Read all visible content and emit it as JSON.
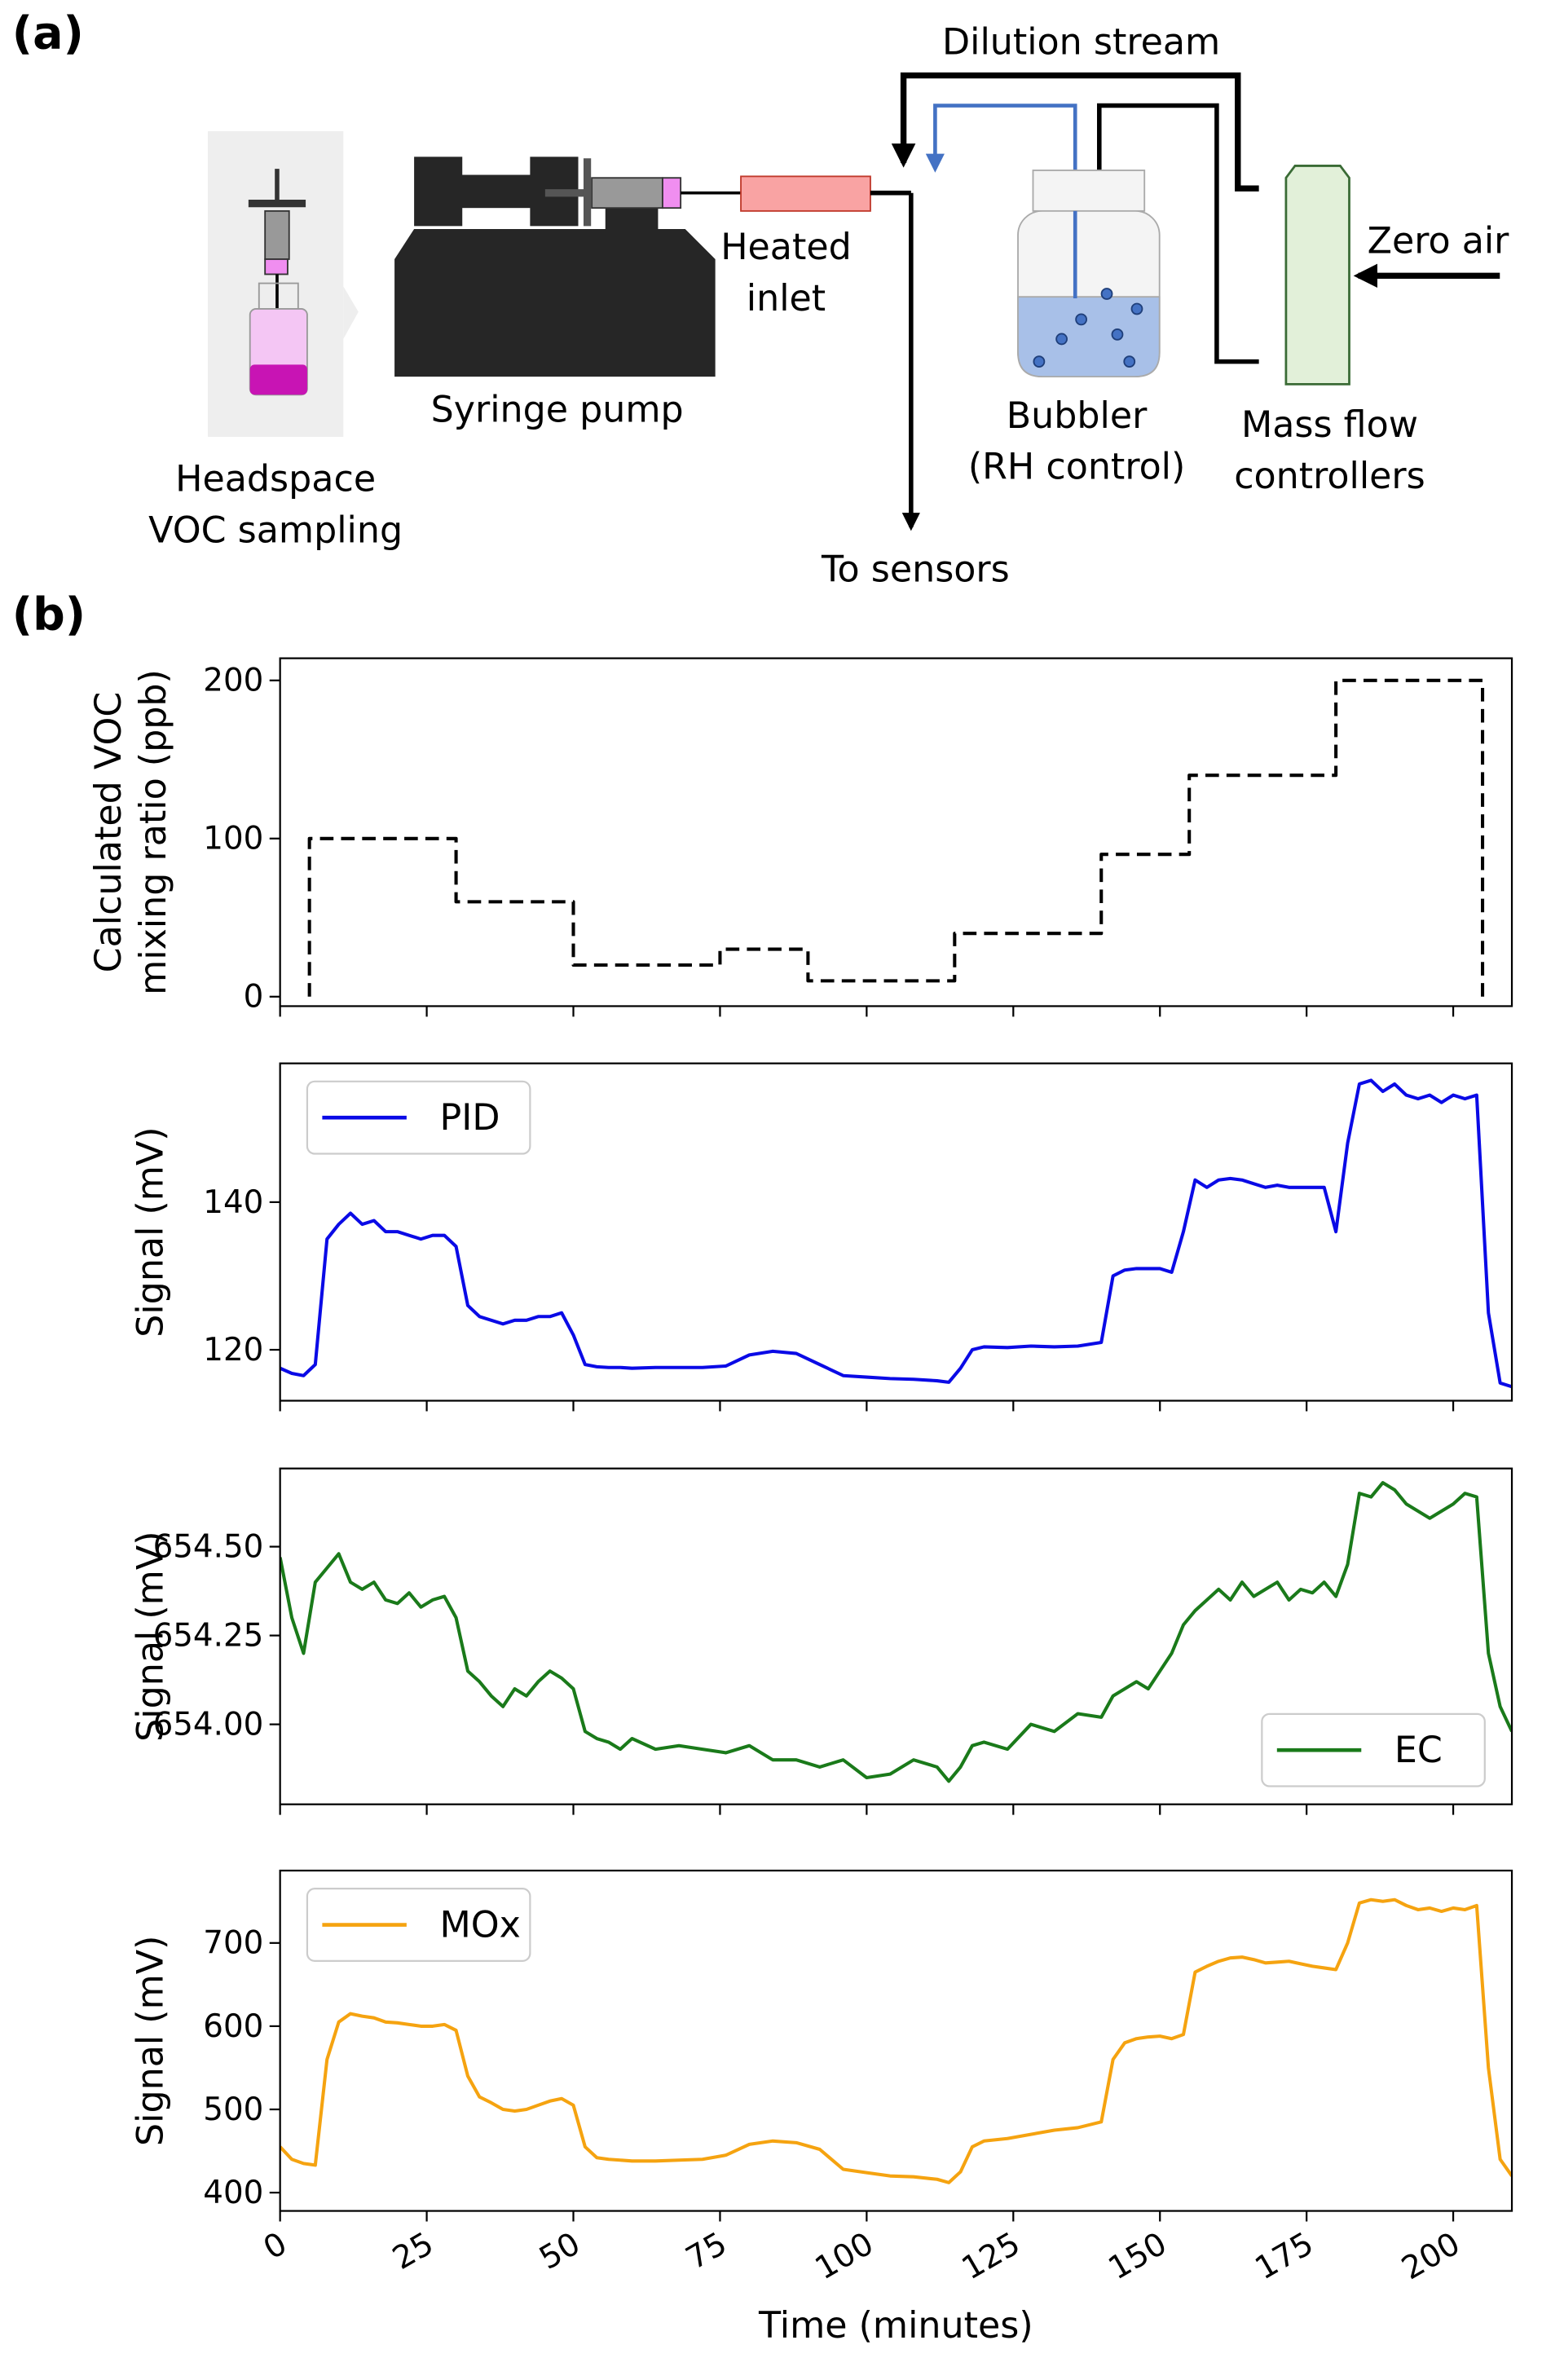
{
  "panel_labels": [
    "(a)",
    "(b)"
  ],
  "diagram": {
    "dilution_stream": "Dilution stream",
    "zero_air": "Zero air",
    "heated_inlet": [
      "Heated",
      "inlet"
    ],
    "syringe_pump": "Syringe pump",
    "headspace": [
      "Headspace",
      "VOC sampling"
    ],
    "bubbler": [
      "Bubbler",
      "(RH control)"
    ],
    "mass_flow": [
      "Mass flow",
      "controllers"
    ],
    "to_sensors": "To sensors"
  },
  "chart_data": [
    {
      "type": "line",
      "ylabel": [
        "Calculated VOC",
        "mixing ratio (ppb)"
      ],
      "x": [
        5,
        5,
        30,
        30,
        50,
        50,
        75,
        75,
        90,
        90,
        115,
        115,
        140,
        140,
        155,
        155,
        180,
        180,
        205,
        205
      ],
      "series": [
        {
          "color": "#000000",
          "linestyle": "dashed",
          "values": [
            0,
            100,
            100,
            60,
            60,
            20,
            20,
            30,
            30,
            10,
            10,
            40,
            40,
            90,
            90,
            140,
            140,
            200,
            200,
            0
          ]
        }
      ],
      "xlim": [
        0,
        210
      ],
      "ylim": [
        -6,
        214
      ],
      "xticks": [
        0,
        25,
        50,
        75,
        100,
        125,
        150,
        175,
        200
      ],
      "yticks": [
        0,
        100,
        200
      ]
    },
    {
      "type": "line",
      "ylabel": "Signal (mV)",
      "x": [
        0,
        2,
        4,
        6,
        8,
        10,
        12,
        14,
        16,
        18,
        20,
        22,
        24,
        26,
        28,
        30,
        32,
        34,
        36,
        38,
        40,
        42,
        44,
        46,
        48,
        50,
        52,
        54,
        56,
        58,
        60,
        64,
        68,
        72,
        76,
        80,
        84,
        88,
        92,
        96,
        100,
        104,
        108,
        112,
        114,
        116,
        118,
        120,
        124,
        128,
        132,
        136,
        140,
        142,
        144,
        146,
        148,
        150,
        152,
        154,
        156,
        158,
        160,
        162,
        164,
        166,
        168,
        170,
        172,
        174,
        176,
        178,
        180,
        182,
        184,
        186,
        188,
        190,
        192,
        194,
        196,
        198,
        200,
        202,
        204,
        206,
        208,
        210
      ],
      "series": [
        {
          "name": "PID",
          "color": "#0a0ae6",
          "values": [
            117.5,
            116.8,
            116.5,
            118,
            135,
            137,
            138.5,
            137,
            137.5,
            136,
            136,
            135.5,
            135,
            135.5,
            135.5,
            134,
            126,
            124.5,
            124,
            123.5,
            124,
            124,
            124.5,
            124.5,
            125,
            122,
            118,
            117.7,
            117.6,
            117.6,
            117.5,
            117.6,
            117.6,
            117.6,
            117.8,
            119.3,
            119.8,
            119.5,
            118,
            116.5,
            116.3,
            116.1,
            116,
            115.8,
            115.6,
            117.5,
            120,
            120.4,
            120.3,
            120.5,
            120.4,
            120.5,
            121,
            130,
            130.8,
            131,
            131,
            131,
            130.5,
            136,
            143,
            142,
            143,
            143.2,
            143,
            142.5,
            142,
            142.3,
            142,
            142,
            142,
            142,
            136,
            148,
            156,
            156.5,
            155,
            156,
            154.5,
            154,
            154.5,
            153.5,
            154.5,
            154,
            154.5,
            125,
            115.5,
            115
          ]
        }
      ],
      "legend": "upper left",
      "xlim": [
        0,
        210
      ],
      "ylim": [
        113.1,
        158.8
      ],
      "xticks": [
        0,
        25,
        50,
        75,
        100,
        125,
        150,
        175,
        200
      ],
      "yticks": [
        120,
        140
      ]
    },
    {
      "type": "line",
      "ylabel": "Signal (mV)",
      "x": [
        0,
        2,
        4,
        6,
        8,
        10,
        12,
        14,
        16,
        18,
        20,
        22,
        24,
        26,
        28,
        30,
        32,
        34,
        36,
        38,
        40,
        42,
        44,
        46,
        48,
        50,
        52,
        54,
        56,
        58,
        60,
        64,
        68,
        72,
        76,
        80,
        84,
        88,
        92,
        96,
        100,
        104,
        108,
        112,
        114,
        116,
        118,
        120,
        124,
        128,
        132,
        136,
        140,
        142,
        144,
        146,
        148,
        150,
        152,
        154,
        156,
        158,
        160,
        162,
        164,
        166,
        168,
        170,
        172,
        174,
        176,
        178,
        180,
        182,
        184,
        186,
        188,
        190,
        192,
        194,
        196,
        198,
        200,
        202,
        204,
        206,
        208,
        210
      ],
      "series": [
        {
          "name": "EC",
          "color": "#1a7a1a",
          "values": [
            654.47,
            654.3,
            654.2,
            654.4,
            654.44,
            654.48,
            654.4,
            654.38,
            654.4,
            654.35,
            654.34,
            654.37,
            654.33,
            654.35,
            654.36,
            654.3,
            654.15,
            654.12,
            654.08,
            654.05,
            654.1,
            654.08,
            654.12,
            654.15,
            654.13,
            654.1,
            653.98,
            653.96,
            653.95,
            653.93,
            653.96,
            653.93,
            653.94,
            653.93,
            653.92,
            653.94,
            653.9,
            653.9,
            653.88,
            653.9,
            653.85,
            653.86,
            653.9,
            653.88,
            653.84,
            653.88,
            653.94,
            653.95,
            653.93,
            654.0,
            653.98,
            654.03,
            654.02,
            654.08,
            654.1,
            654.12,
            654.1,
            654.15,
            654.2,
            654.28,
            654.32,
            654.35,
            654.38,
            654.35,
            654.4,
            654.36,
            654.38,
            654.4,
            654.35,
            654.38,
            654.37,
            654.4,
            654.36,
            654.45,
            654.65,
            654.64,
            654.68,
            654.66,
            654.62,
            654.6,
            654.58,
            654.6,
            654.62,
            654.65,
            654.64,
            654.2,
            654.05,
            653.98
          ]
        }
      ],
      "legend": "lower right",
      "xlim": [
        0,
        210
      ],
      "ylim": [
        653.775,
        654.72
      ],
      "xticks": [
        0,
        25,
        50,
        75,
        100,
        125,
        150,
        175,
        200
      ],
      "yticks": [
        {
          "value": 654,
          "label": "654.00"
        },
        {
          "value": 654.25,
          "label": "654.25"
        },
        {
          "value": 654.5,
          "label": "654.50"
        }
      ]
    },
    {
      "type": "line",
      "ylabel": "Signal (mV)",
      "xlabel": "Time (minutes)",
      "x": [
        0,
        2,
        4,
        6,
        8,
        10,
        12,
        14,
        16,
        18,
        20,
        22,
        24,
        26,
        28,
        30,
        32,
        34,
        36,
        38,
        40,
        42,
        44,
        46,
        48,
        50,
        52,
        54,
        56,
        58,
        60,
        64,
        68,
        72,
        76,
        80,
        84,
        88,
        92,
        96,
        100,
        104,
        108,
        112,
        114,
        116,
        118,
        120,
        124,
        128,
        132,
        136,
        140,
        142,
        144,
        146,
        148,
        150,
        152,
        154,
        156,
        158,
        160,
        162,
        164,
        166,
        168,
        170,
        172,
        174,
        176,
        178,
        180,
        182,
        184,
        186,
        188,
        190,
        192,
        194,
        196,
        198,
        200,
        202,
        204,
        206,
        208,
        210
      ],
      "series": [
        {
          "name": "MOx",
          "color": "#f5a310",
          "values": [
            455,
            440,
            435,
            433,
            560,
            605,
            615,
            612,
            610,
            605,
            604,
            602,
            600,
            600,
            602,
            595,
            540,
            515,
            508,
            500,
            498,
            500,
            505,
            510,
            513,
            505,
            455,
            442,
            440,
            439,
            438,
            438,
            439,
            440,
            445,
            458,
            462,
            460,
            452,
            428,
            424,
            420,
            419,
            416,
            412,
            425,
            455,
            462,
            465,
            470,
            475,
            478,
            485,
            560,
            580,
            585,
            587,
            588,
            585,
            590,
            665,
            672,
            678,
            682,
            683,
            680,
            676,
            677,
            678,
            675,
            672,
            670,
            668,
            700,
            748,
            752,
            750,
            752,
            745,
            740,
            742,
            738,
            742,
            740,
            745,
            550,
            440,
            420
          ]
        }
      ],
      "legend": "upper left",
      "xlim": [
        0,
        210
      ],
      "ylim": [
        378,
        787
      ],
      "xticks": [
        0,
        25,
        50,
        75,
        100,
        125,
        150,
        175,
        200
      ],
      "yticks": [
        400,
        500,
        600,
        700
      ]
    }
  ]
}
